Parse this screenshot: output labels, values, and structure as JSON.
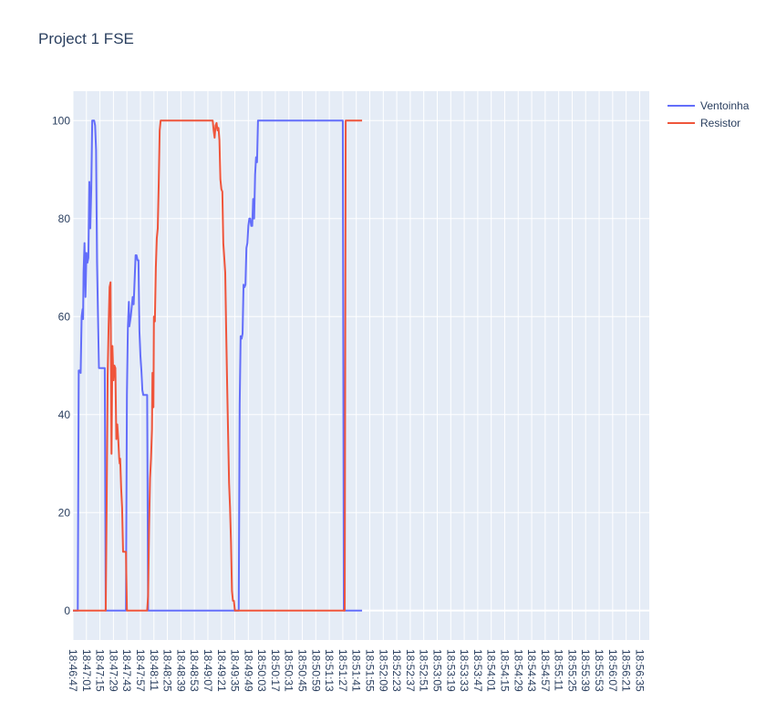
{
  "chart_data": {
    "type": "line",
    "title": "Project 1 FSE",
    "xlabel": "",
    "ylabel": "",
    "ylim": [
      -6,
      106
    ],
    "yticks": [
      0,
      20,
      40,
      60,
      80,
      100
    ],
    "xticks": [
      "18:46:47",
      "18:47:01",
      "18:47:15",
      "18:47:29",
      "18:47:43",
      "18:47:57",
      "18:48:11",
      "18:48:25",
      "18:48:39",
      "18:48:53",
      "18:49:07",
      "18:49:21",
      "18:49:35",
      "18:49:49",
      "18:50:03",
      "18:50:17",
      "18:50:31",
      "18:50:45",
      "18:50:59",
      "18:51:13",
      "18:51:27",
      "18:51:41",
      "18:51:55",
      "18:52:09",
      "18:52:23",
      "18:52:37",
      "18:52:51",
      "18:53:05",
      "18:53:19",
      "18:53:33",
      "18:53:47",
      "18:54:01",
      "18:54:15",
      "18:54:29",
      "18:54:43",
      "18:54:57",
      "18:55:11",
      "18:55:25",
      "18:55:39",
      "18:55:53",
      "18:56:07",
      "18:56:21",
      "18:56:35"
    ],
    "x_step_seconds": 14,
    "grid": true,
    "legend_position": "top-right",
    "series": [
      {
        "name": "Ventoinha",
        "color": "#636efa",
        "points": [
          [
            0,
            0
          ],
          [
            5,
            0
          ],
          [
            6,
            49
          ],
          [
            7,
            49
          ],
          [
            8,
            48.5
          ],
          [
            9,
            60
          ],
          [
            10,
            61.5
          ],
          [
            10.5,
            59.5
          ],
          [
            11,
            69
          ],
          [
            12,
            75
          ],
          [
            13,
            64
          ],
          [
            14,
            73
          ],
          [
            15,
            71
          ],
          [
            16,
            72
          ],
          [
            17,
            87.5
          ],
          [
            18,
            78
          ],
          [
            19,
            86
          ],
          [
            20,
            100
          ],
          [
            22,
            100
          ],
          [
            23,
            99
          ],
          [
            24,
            94
          ],
          [
            25,
            71
          ],
          [
            26,
            60
          ],
          [
            27,
            49.5
          ],
          [
            33,
            49.5
          ],
          [
            34,
            0
          ],
          [
            55,
            0
          ],
          [
            56,
            44
          ],
          [
            57,
            58
          ],
          [
            58,
            63
          ],
          [
            58.5,
            58
          ],
          [
            60,
            60
          ],
          [
            62,
            64
          ],
          [
            63,
            62.5
          ],
          [
            65,
            72.5
          ],
          [
            66,
            72.5
          ],
          [
            67,
            71.5
          ],
          [
            68,
            71.5
          ],
          [
            69,
            57
          ],
          [
            70,
            52
          ],
          [
            71,
            49
          ],
          [
            72,
            45
          ],
          [
            73,
            44
          ],
          [
            77,
            44
          ],
          [
            78,
            0
          ],
          [
            172,
            0
          ],
          [
            173,
            42
          ],
          [
            174,
            56
          ],
          [
            175,
            55.5
          ],
          [
            176,
            56.5
          ],
          [
            177,
            66.5
          ],
          [
            178,
            66
          ],
          [
            179,
            66.5
          ],
          [
            180,
            74
          ],
          [
            181,
            75
          ],
          [
            182,
            78.5
          ],
          [
            183,
            80
          ],
          [
            184,
            80
          ],
          [
            185,
            78.5
          ],
          [
            186,
            78.5
          ],
          [
            187,
            84
          ],
          [
            188,
            80
          ],
          [
            189,
            89
          ],
          [
            190,
            92.5
          ],
          [
            191,
            91.5
          ],
          [
            192,
            100
          ],
          [
            280,
            100
          ],
          [
            281,
            0
          ],
          [
            300,
            0
          ]
        ]
      },
      {
        "name": "Resistor",
        "color": "#ef553b",
        "points": [
          [
            0,
            0
          ],
          [
            34,
            0
          ],
          [
            35,
            22
          ],
          [
            36,
            48
          ],
          [
            37,
            58
          ],
          [
            38,
            66
          ],
          [
            39,
            67
          ],
          [
            40,
            32
          ],
          [
            41,
            54
          ],
          [
            42,
            47
          ],
          [
            43,
            50
          ],
          [
            44,
            49.5
          ],
          [
            45,
            35
          ],
          [
            46,
            38
          ],
          [
            47,
            35
          ],
          [
            48,
            31
          ],
          [
            48.5,
            30
          ],
          [
            49,
            31
          ],
          [
            50,
            25
          ],
          [
            51,
            21
          ],
          [
            52,
            12
          ],
          [
            55,
            12
          ],
          [
            56,
            0
          ],
          [
            77,
            0
          ],
          [
            78,
            3
          ],
          [
            79,
            17
          ],
          [
            80,
            27
          ],
          [
            81,
            31
          ],
          [
            82,
            37
          ],
          [
            82.5,
            48.5
          ],
          [
            83,
            48
          ],
          [
            83.5,
            41.5
          ],
          [
            84,
            60
          ],
          [
            85,
            59
          ],
          [
            86,
            70
          ],
          [
            87,
            76
          ],
          [
            88,
            78
          ],
          [
            89,
            87
          ],
          [
            90,
            98
          ],
          [
            91,
            100
          ],
          [
            145,
            100
          ],
          [
            146,
            98
          ],
          [
            147,
            96.5
          ],
          [
            148,
            99
          ],
          [
            149,
            99.5
          ],
          [
            150,
            98
          ],
          [
            151,
            98.5
          ],
          [
            152,
            96
          ],
          [
            153,
            88
          ],
          [
            154,
            86
          ],
          [
            155,
            85.5
          ],
          [
            156,
            75
          ],
          [
            157,
            72
          ],
          [
            158,
            69
          ],
          [
            159,
            57
          ],
          [
            160,
            46
          ],
          [
            161,
            36
          ],
          [
            162,
            26
          ],
          [
            163,
            21
          ],
          [
            164,
            14
          ],
          [
            165,
            4
          ],
          [
            166,
            2
          ],
          [
            167,
            2
          ],
          [
            168,
            0
          ],
          [
            282,
            0
          ],
          [
            283,
            100
          ],
          [
            300,
            100
          ]
        ]
      }
    ]
  }
}
